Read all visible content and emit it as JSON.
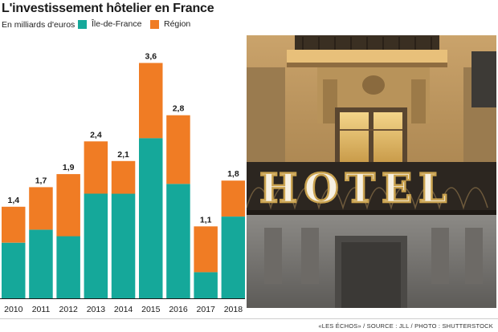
{
  "title": "L'investissement hôtelier en France",
  "unit_label": "En milliards d'euros",
  "colors": {
    "ile_de_france": "#15a89a",
    "region": "#f07c24"
  },
  "chart_data": {
    "type": "bar",
    "stacked": true,
    "title": "L'investissement hôtelier en France",
    "ylabel": "En milliards d'euros",
    "categories": [
      "2010",
      "2011",
      "2012",
      "2013",
      "2014",
      "2015",
      "2016",
      "2017",
      "2018"
    ],
    "totals": [
      1.4,
      1.7,
      1.9,
      2.4,
      2.1,
      3.6,
      2.8,
      1.1,
      1.8
    ],
    "total_labels": [
      "1,4",
      "1,7",
      "1,9",
      "2,4",
      "2,1",
      "3,6",
      "2,8",
      "1,1",
      "1,8"
    ],
    "series": [
      {
        "name": "Île-de-France",
        "color": "#15a89a",
        "values": [
          0.85,
          1.05,
          0.95,
          1.6,
          1.6,
          2.45,
          1.75,
          0.4,
          1.25
        ]
      },
      {
        "name": "Région",
        "color": "#f07c24",
        "values": [
          0.55,
          0.65,
          0.95,
          0.8,
          0.5,
          1.15,
          1.05,
          0.7,
          0.55
        ]
      }
    ],
    "ylim": [
      0,
      3.9
    ],
    "grid": false,
    "legend_position": "top-left"
  },
  "photo": {
    "sign_text": "HOTEL",
    "subject": "hotel-facade"
  },
  "credit": "«LES ÉCHOS» / SOURCE : JLL / PHOTO : SHUTTERSTOCK"
}
